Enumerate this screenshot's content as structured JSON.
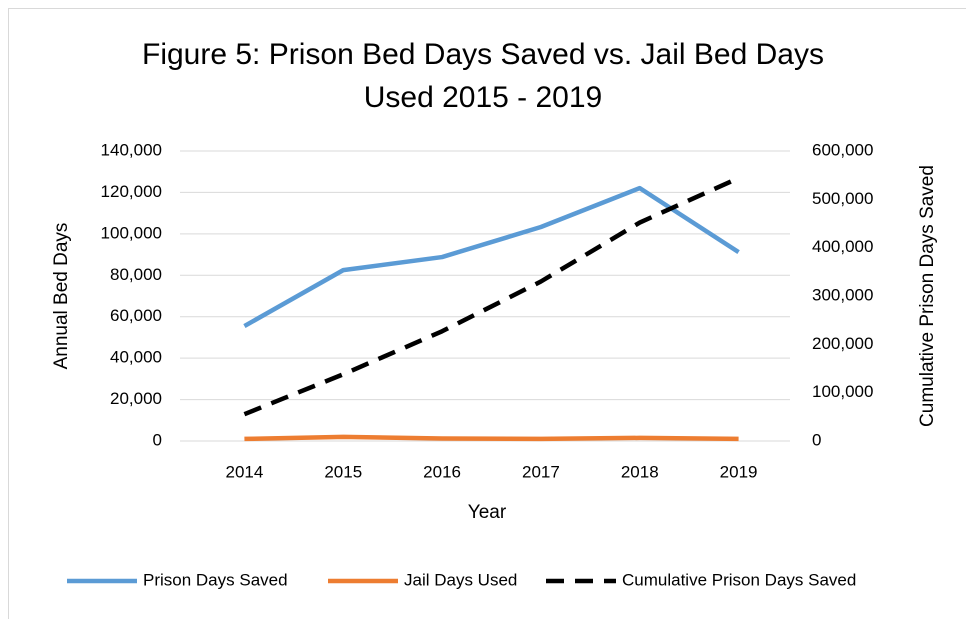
{
  "chart_data": {
    "type": "line",
    "title": "Figure 5: Prison Bed Days Saved vs. Jail Bed Days Used 2015 - 2019",
    "x_label": "Year",
    "y_label": "Annual Bed Days",
    "y2_label": "Cumulative Prison Days Saved",
    "categories": [
      "2014",
      "2015",
      "2016",
      "2017",
      "2018",
      "2019"
    ],
    "series": [
      {
        "name": "Prison Days Saved",
        "color": "#5b9bd5",
        "values": [
          55500,
          82500,
          88800,
          103300,
          122100,
          91200
        ]
      },
      {
        "name": "Jail Days Used",
        "color": "#ed7d31",
        "values": [
          1000,
          2000,
          1200,
          1000,
          1500,
          1000
        ]
      },
      {
        "name": "Cumulative Prison Days Saved",
        "color": "#000000",
        "dashed": true,
        "axis": "y2",
        "values": [
          55500,
          138000,
          227000,
          330000,
          452000,
          544000
        ]
      }
    ],
    "ylim": [
      0,
      140000
    ],
    "yticks": [
      0,
      {
        "value": 20000,
        "label": "20,000"
      },
      {
        "value": 40000,
        "label": "40,000"
      },
      {
        "value": 60000,
        "label": "60,000"
      },
      {
        "value": 80000,
        "label": "80,000"
      },
      {
        "value": 100000,
        "label": "100,000"
      },
      {
        "value": 120000,
        "label": "120,000"
      },
      {
        "value": 140000,
        "label": "140,000"
      }
    ],
    "y2lim": [
      0,
      600000
    ],
    "y2ticks": [
      0,
      {
        "value": 100000,
        "label": "100,000"
      },
      {
        "value": 200000,
        "label": "200,000"
      },
      {
        "value": 300000,
        "label": "300,000"
      },
      {
        "value": 400000,
        "label": "400,000"
      },
      {
        "value": 500000,
        "label": "500,000"
      },
      {
        "value": 600000,
        "label": "600,000"
      }
    ],
    "grid": true,
    "legend": "bottom"
  }
}
